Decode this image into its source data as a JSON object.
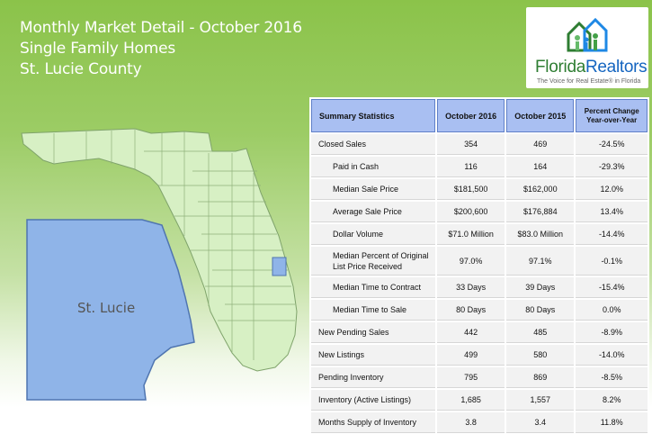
{
  "header": {
    "line1": "Monthly Market Detail - October 2016",
    "line2": "Single Family Homes",
    "line3": "St. Lucie County"
  },
  "logo": {
    "name_part1": "Florida",
    "name_part2": "Realtors",
    "tagline": "The Voice for Real Estate® in Florida"
  },
  "map": {
    "inset_label": "St. Lucie",
    "state_color": "#d7f0c4",
    "county_color": "#8fb4e8"
  },
  "table": {
    "headers": {
      "label": "Summary Statistics",
      "col1": "October 2016",
      "col2": "October 2015",
      "col3_line1": "Percent Change",
      "col3_line2": "Year-over-Year"
    },
    "rows": [
      {
        "label": "Closed Sales",
        "v2016": "354",
        "v2015": "469",
        "change": "-24.5%"
      },
      {
        "label": "Paid in Cash",
        "v2016": "116",
        "v2015": "164",
        "change": "-29.3%"
      },
      {
        "label": "Median Sale Price",
        "v2016": "$181,500",
        "v2015": "$162,000",
        "change": "12.0%"
      },
      {
        "label": "Average Sale Price",
        "v2016": "$200,600",
        "v2015": "$176,884",
        "change": "13.4%"
      },
      {
        "label": "Dollar Volume",
        "v2016": "$71.0 Million",
        "v2015": "$83.0 Million",
        "change": "-14.4%"
      },
      {
        "label_line1": "Median Percent of Original",
        "label_line2": "List Price Received",
        "v2016": "97.0%",
        "v2015": "97.1%",
        "change": "-0.1%"
      },
      {
        "label": "Median Time to Contract",
        "v2016": "33 Days",
        "v2015": "39 Days",
        "change": "-15.4%"
      },
      {
        "label": "Median Time to Sale",
        "v2016": "80 Days",
        "v2015": "80 Days",
        "change": "0.0%"
      },
      {
        "label": "New Pending Sales",
        "v2016": "442",
        "v2015": "485",
        "change": "-8.9%"
      },
      {
        "label": "New Listings",
        "v2016": "499",
        "v2015": "580",
        "change": "-14.0%"
      },
      {
        "label": "Pending Inventory",
        "v2016": "795",
        "v2015": "869",
        "change": "-8.5%"
      },
      {
        "label": "Inventory (Active Listings)",
        "v2016": "1,685",
        "v2015": "1,557",
        "change": "8.2%"
      },
      {
        "label": "Months Supply of Inventory",
        "v2016": "3.8",
        "v2015": "3.4",
        "change": "11.8%"
      }
    ]
  }
}
